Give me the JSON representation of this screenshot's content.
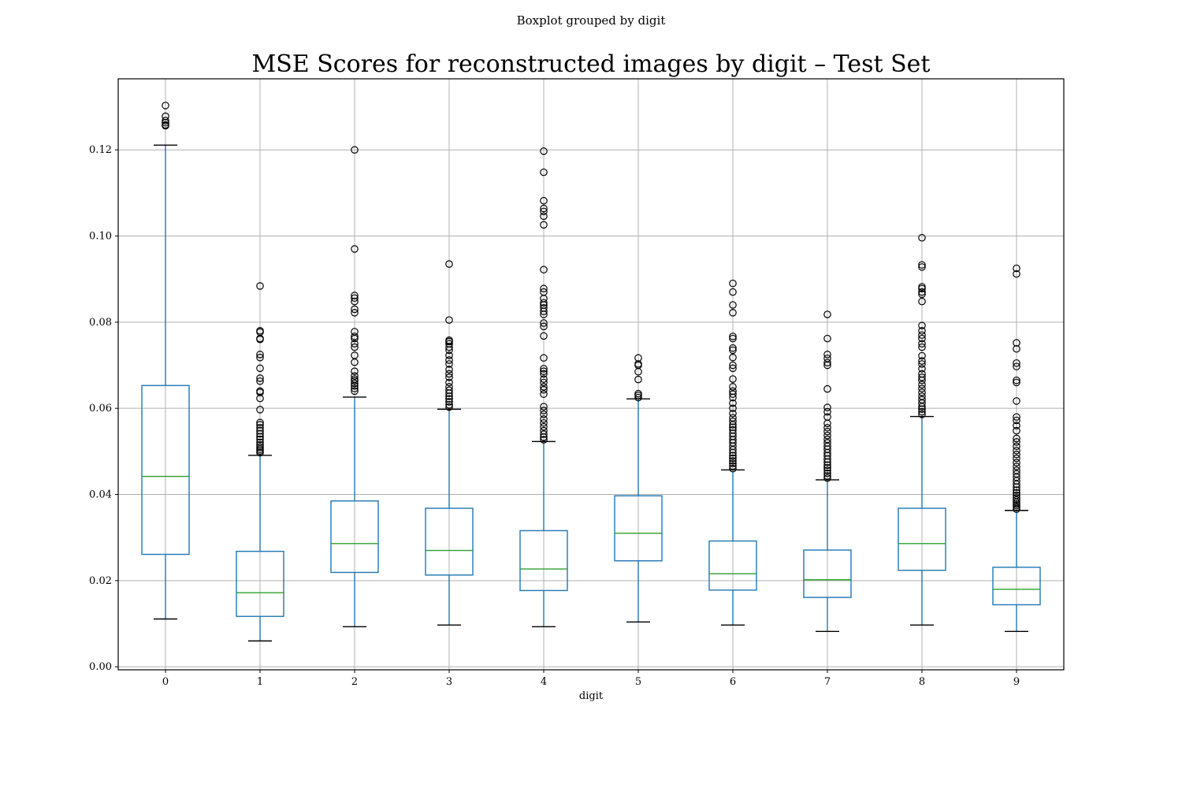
{
  "suptitle": "Boxplot grouped by digit",
  "chart_data": {
    "type": "box",
    "title": "MSE Scores for reconstructed images by digit – Test Set",
    "xlabel": "digit",
    "ylabel": "",
    "ylim": [
      -0.0007,
      0.1365
    ],
    "yticks": [
      0.0,
      0.02,
      0.04,
      0.06,
      0.08,
      0.1,
      0.12
    ],
    "ytick_labels": [
      "0.00",
      "0.02",
      "0.04",
      "0.06",
      "0.08",
      "0.10",
      "0.12"
    ],
    "grid": true,
    "colors": {
      "box": "#1f77b4",
      "median": "#2ca02c",
      "cap": "#000000",
      "flier": "#000000",
      "grid": "#b0b0b0"
    },
    "categories": [
      "0",
      "1",
      "2",
      "3",
      "4",
      "5",
      "6",
      "7",
      "8",
      "9"
    ],
    "series": [
      {
        "category": "0",
        "whisker_low": 0.0111,
        "q1": 0.0261,
        "median": 0.0442,
        "q3": 0.0653,
        "whisker_high": 0.1211,
        "fliers": [
          0.1256,
          0.1258,
          0.1263,
          0.1268,
          0.1278,
          0.1303
        ]
      },
      {
        "category": "1",
        "whisker_low": 0.006,
        "q1": 0.0117,
        "median": 0.0172,
        "q3": 0.0268,
        "whisker_high": 0.0491,
        "fliers": [
          0.0497,
          0.0501,
          0.0505,
          0.051,
          0.0515,
          0.0521,
          0.0528,
          0.0534,
          0.0541,
          0.0548,
          0.0555,
          0.0562,
          0.0567,
          0.0597,
          0.0623,
          0.0637,
          0.064,
          0.0663,
          0.067,
          0.0693,
          0.0718,
          0.0725,
          0.076,
          0.0762,
          0.0777,
          0.078,
          0.0884
        ]
      },
      {
        "category": "2",
        "whisker_low": 0.0093,
        "q1": 0.0219,
        "median": 0.0286,
        "q3": 0.0385,
        "whisker_high": 0.0626,
        "fliers": [
          0.064,
          0.0646,
          0.0652,
          0.0658,
          0.0664,
          0.0668,
          0.0675,
          0.0686,
          0.0707,
          0.0723,
          0.0742,
          0.075,
          0.0762,
          0.0767,
          0.0778,
          0.0822,
          0.083,
          0.0848,
          0.0856,
          0.0862,
          0.097,
          0.12
        ]
      },
      {
        "category": "3",
        "whisker_low": 0.0097,
        "q1": 0.0213,
        "median": 0.027,
        "q3": 0.0368,
        "whisker_high": 0.0598,
        "fliers": [
          0.0603,
          0.0608,
          0.0615,
          0.0622,
          0.0628,
          0.0635,
          0.0642,
          0.065,
          0.066,
          0.0672,
          0.068,
          0.069,
          0.0703,
          0.0712,
          0.0723,
          0.0735,
          0.0742,
          0.075,
          0.0755,
          0.0758,
          0.0805,
          0.0935
        ]
      },
      {
        "category": "4",
        "whisker_low": 0.0093,
        "q1": 0.0177,
        "median": 0.0227,
        "q3": 0.0316,
        "whisker_high": 0.0523,
        "fliers": [
          0.0527,
          0.0533,
          0.054,
          0.0548,
          0.0557,
          0.0566,
          0.0575,
          0.0586,
          0.0595,
          0.0604,
          0.0633,
          0.0643,
          0.065,
          0.066,
          0.0668,
          0.068,
          0.0686,
          0.0692,
          0.0717,
          0.0768,
          0.079,
          0.0798,
          0.0818,
          0.0825,
          0.0833,
          0.084,
          0.0845,
          0.0855,
          0.087,
          0.0878,
          0.0922,
          0.1026,
          0.1046,
          0.1057,
          0.1064,
          0.1082,
          0.1148,
          0.1197
        ]
      },
      {
        "category": "5",
        "whisker_low": 0.0104,
        "q1": 0.0246,
        "median": 0.031,
        "q3": 0.0397,
        "whisker_high": 0.0622,
        "fliers": [
          0.0625,
          0.063,
          0.0634,
          0.0667,
          0.0685,
          0.07,
          0.0703,
          0.0717
        ]
      },
      {
        "category": "6",
        "whisker_low": 0.0097,
        "q1": 0.0178,
        "median": 0.0216,
        "q3": 0.0292,
        "whisker_high": 0.0457,
        "fliers": [
          0.046,
          0.0466,
          0.0472,
          0.0478,
          0.0484,
          0.049,
          0.0497,
          0.0504,
          0.0512,
          0.052,
          0.0527,
          0.0535,
          0.0542,
          0.055,
          0.0556,
          0.0562,
          0.057,
          0.0578,
          0.0588,
          0.06,
          0.0612,
          0.0625,
          0.0633,
          0.064,
          0.065,
          0.0668,
          0.0693,
          0.07,
          0.0718,
          0.0735,
          0.074,
          0.0762,
          0.0767,
          0.0822,
          0.084,
          0.087,
          0.089
        ]
      },
      {
        "category": "7",
        "whisker_low": 0.0082,
        "q1": 0.0161,
        "median": 0.0202,
        "q3": 0.0271,
        "whisker_high": 0.0434,
        "fliers": [
          0.0438,
          0.0443,
          0.0449,
          0.0456,
          0.0462,
          0.0468,
          0.0475,
          0.0482,
          0.049,
          0.0497,
          0.0505,
          0.0512,
          0.052,
          0.0528,
          0.0537,
          0.0546,
          0.0555,
          0.0565,
          0.058,
          0.0592,
          0.0602,
          0.0645,
          0.07,
          0.0706,
          0.0716,
          0.0725,
          0.0762,
          0.0818
        ]
      },
      {
        "category": "8",
        "whisker_low": 0.0097,
        "q1": 0.0224,
        "median": 0.0286,
        "q3": 0.0368,
        "whisker_high": 0.0581,
        "fliers": [
          0.0586,
          0.0592,
          0.0598,
          0.0604,
          0.0612,
          0.062,
          0.0628,
          0.0637,
          0.0646,
          0.0655,
          0.0665,
          0.0672,
          0.068,
          0.0692,
          0.0703,
          0.071,
          0.0722,
          0.0742,
          0.075,
          0.0762,
          0.077,
          0.078,
          0.0792,
          0.0848,
          0.0865,
          0.087,
          0.0878,
          0.0882,
          0.0928,
          0.0933,
          0.0996
        ]
      },
      {
        "category": "9",
        "whisker_low": 0.0082,
        "q1": 0.0144,
        "median": 0.018,
        "q3": 0.0231,
        "whisker_high": 0.0363,
        "fliers": [
          0.0366,
          0.037,
          0.0374,
          0.0378,
          0.0382,
          0.0387,
          0.0392,
          0.0398,
          0.0404,
          0.041,
          0.0417,
          0.0424,
          0.0432,
          0.044,
          0.0448,
          0.0456,
          0.0465,
          0.0474,
          0.0484,
          0.0493,
          0.0502,
          0.0512,
          0.0522,
          0.053,
          0.0548,
          0.056,
          0.0572,
          0.058,
          0.0617,
          0.066,
          0.0665,
          0.0697,
          0.0705,
          0.0738,
          0.0752,
          0.0912,
          0.0925
        ]
      }
    ]
  }
}
